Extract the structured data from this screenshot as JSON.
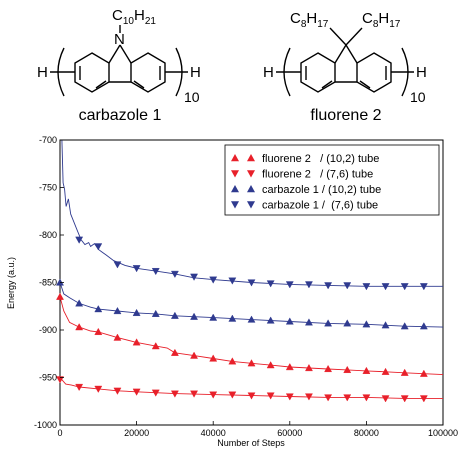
{
  "structures": {
    "left": {
      "substituent_prefix": "C",
      "substituent_sub_a": "10",
      "substituent_mid": "H",
      "substituent_sub_b": "21",
      "heteroatom": "N",
      "end_left": "H",
      "end_right": "H",
      "repeat": "10",
      "caption": "carbazole 1"
    },
    "right": {
      "sub1_prefix": "C",
      "sub1_sub_a": "8",
      "sub1_mid": "H",
      "sub1_sub_b": "17",
      "sub2_prefix": "C",
      "sub2_sub_a": "8",
      "sub2_mid": "H",
      "sub2_sub_b": "17",
      "end_left": "H",
      "end_right": "H",
      "repeat": "10",
      "caption": "fluorene 2"
    }
  },
  "chart_data": {
    "type": "line",
    "xlabel": "Number of Steps",
    "ylabel": "Energy (a.u.)",
    "xlim": [
      0,
      100000
    ],
    "ylim": [
      -1000,
      -700
    ],
    "xticks": [
      0,
      20000,
      40000,
      60000,
      80000,
      100000
    ],
    "xtick_labels": [
      "0",
      "20000",
      "40000",
      "60000",
      "80000",
      "100000"
    ],
    "yticks": [
      -1000,
      -950,
      -900,
      -850,
      -800,
      -750,
      -700
    ],
    "ytick_labels": [
      "-1000",
      "-950",
      "-900",
      "-850",
      "-800",
      "-750",
      "-700"
    ],
    "grid": false,
    "legend": "top-right",
    "series": [
      {
        "name": "fluorene 2   / (10,2) tube",
        "color": "#e8202a",
        "marker": "triangle-up",
        "line": [
          [
            0,
            -865
          ],
          [
            1000,
            -880
          ],
          [
            2500,
            -892
          ],
          [
            5000,
            -897
          ],
          [
            8000,
            -901
          ],
          [
            10000,
            -902
          ],
          [
            15000,
            -908
          ],
          [
            20000,
            -913
          ],
          [
            25000,
            -917
          ],
          [
            28000,
            -919
          ],
          [
            30000,
            -924
          ],
          [
            35000,
            -927
          ],
          [
            40000,
            -930
          ],
          [
            45000,
            -933
          ],
          [
            50000,
            -935
          ],
          [
            55000,
            -937
          ],
          [
            60000,
            -939
          ],
          [
            65000,
            -940
          ],
          [
            70000,
            -941
          ],
          [
            75000,
            -942
          ],
          [
            80000,
            -943
          ],
          [
            85000,
            -944
          ],
          [
            90000,
            -945
          ],
          [
            95000,
            -946
          ],
          [
            100000,
            -947
          ]
        ],
        "markers": [
          [
            0,
            -865
          ],
          [
            5000,
            -897
          ],
          [
            10000,
            -902
          ],
          [
            15000,
            -908
          ],
          [
            20000,
            -913
          ],
          [
            25000,
            -917
          ],
          [
            30000,
            -924
          ],
          [
            35000,
            -927
          ],
          [
            40000,
            -930
          ],
          [
            45000,
            -933
          ],
          [
            50000,
            -935
          ],
          [
            55000,
            -937
          ],
          [
            60000,
            -939
          ],
          [
            65000,
            -940
          ],
          [
            70000,
            -941
          ],
          [
            75000,
            -942
          ],
          [
            80000,
            -943
          ],
          [
            85000,
            -944
          ],
          [
            90000,
            -945
          ],
          [
            95000,
            -946
          ]
        ]
      },
      {
        "name": "fluorene 2   / (7,6) tube",
        "color": "#e8202a",
        "marker": "triangle-down",
        "line": [
          [
            0,
            -950
          ],
          [
            1500,
            -957
          ],
          [
            3000,
            -958
          ],
          [
            5000,
            -960
          ],
          [
            10000,
            -962
          ],
          [
            15000,
            -964
          ],
          [
            20000,
            -965
          ],
          [
            25000,
            -966
          ],
          [
            30000,
            -967
          ],
          [
            40000,
            -968
          ],
          [
            50000,
            -969
          ],
          [
            60000,
            -970
          ],
          [
            70000,
            -971
          ],
          [
            80000,
            -971
          ],
          [
            90000,
            -972
          ],
          [
            100000,
            -972
          ]
        ],
        "markers": [
          [
            0,
            -952
          ],
          [
            5000,
            -960
          ],
          [
            10000,
            -962
          ],
          [
            15000,
            -964
          ],
          [
            20000,
            -965
          ],
          [
            25000,
            -966
          ],
          [
            30000,
            -967
          ],
          [
            35000,
            -967
          ],
          [
            40000,
            -968
          ],
          [
            45000,
            -968
          ],
          [
            50000,
            -969
          ],
          [
            55000,
            -969
          ],
          [
            60000,
            -970
          ],
          [
            65000,
            -970
          ],
          [
            70000,
            -971
          ],
          [
            75000,
            -971
          ],
          [
            80000,
            -971
          ],
          [
            85000,
            -972
          ],
          [
            90000,
            -972
          ],
          [
            95000,
            -972
          ]
        ]
      },
      {
        "name": "carbazole 1 / (10,2) tube",
        "color": "#2f3a8f",
        "marker": "triangle-up",
        "line": [
          [
            0,
            -850
          ],
          [
            1000,
            -862
          ],
          [
            2500,
            -866
          ],
          [
            5000,
            -872
          ],
          [
            8000,
            -876
          ],
          [
            10000,
            -878
          ],
          [
            15000,
            -880
          ],
          [
            20000,
            -882
          ],
          [
            25000,
            -883
          ],
          [
            30000,
            -885
          ],
          [
            40000,
            -887
          ],
          [
            50000,
            -889
          ],
          [
            60000,
            -891
          ],
          [
            70000,
            -893
          ],
          [
            80000,
            -894
          ],
          [
            90000,
            -896
          ],
          [
            100000,
            -897
          ]
        ],
        "markers": [
          [
            0,
            -850
          ],
          [
            5000,
            -872
          ],
          [
            10000,
            -878
          ],
          [
            15000,
            -880
          ],
          [
            20000,
            -882
          ],
          [
            25000,
            -883
          ],
          [
            30000,
            -885
          ],
          [
            35000,
            -886
          ],
          [
            40000,
            -887
          ],
          [
            45000,
            -888
          ],
          [
            50000,
            -889
          ],
          [
            55000,
            -890
          ],
          [
            60000,
            -891
          ],
          [
            65000,
            -892
          ],
          [
            70000,
            -893
          ],
          [
            75000,
            -893
          ],
          [
            80000,
            -894
          ],
          [
            85000,
            -895
          ],
          [
            90000,
            -896
          ],
          [
            95000,
            -896
          ]
        ]
      },
      {
        "name": "carbazole 1 /  (7,6) tube",
        "color": "#2f3a8f",
        "marker": "triangle-down",
        "line": [
          [
            500,
            -700
          ],
          [
            800,
            -745
          ],
          [
            1200,
            -752
          ],
          [
            1600,
            -770
          ],
          [
            2200,
            -762
          ],
          [
            2800,
            -778
          ],
          [
            3500,
            -785
          ],
          [
            4500,
            -795
          ],
          [
            5500,
            -805
          ],
          [
            6500,
            -810
          ],
          [
            7500,
            -808
          ],
          [
            8000,
            -812
          ],
          [
            9000,
            -809
          ],
          [
            10000,
            -815
          ],
          [
            11000,
            -818
          ],
          [
            12000,
            -821
          ],
          [
            14000,
            -827
          ],
          [
            17000,
            -832
          ],
          [
            20000,
            -835
          ],
          [
            25000,
            -838
          ],
          [
            30000,
            -841
          ],
          [
            35000,
            -845
          ],
          [
            40000,
            -847
          ],
          [
            50000,
            -850
          ],
          [
            60000,
            -852
          ],
          [
            70000,
            -853
          ],
          [
            80000,
            -854
          ],
          [
            90000,
            -854
          ],
          [
            100000,
            -854
          ]
        ],
        "markers": [
          [
            5000,
            -805
          ],
          [
            10000,
            -812
          ],
          [
            15000,
            -831
          ],
          [
            20000,
            -835
          ],
          [
            25000,
            -838
          ],
          [
            30000,
            -841
          ],
          [
            35000,
            -844
          ],
          [
            40000,
            -847
          ],
          [
            45000,
            -848
          ],
          [
            50000,
            -850
          ],
          [
            55000,
            -851
          ],
          [
            60000,
            -852
          ],
          [
            65000,
            -852
          ],
          [
            70000,
            -853
          ],
          [
            75000,
            -853
          ],
          [
            80000,
            -854
          ],
          [
            85000,
            -854
          ],
          [
            90000,
            -854
          ],
          [
            95000,
            -854
          ]
        ]
      }
    ]
  }
}
